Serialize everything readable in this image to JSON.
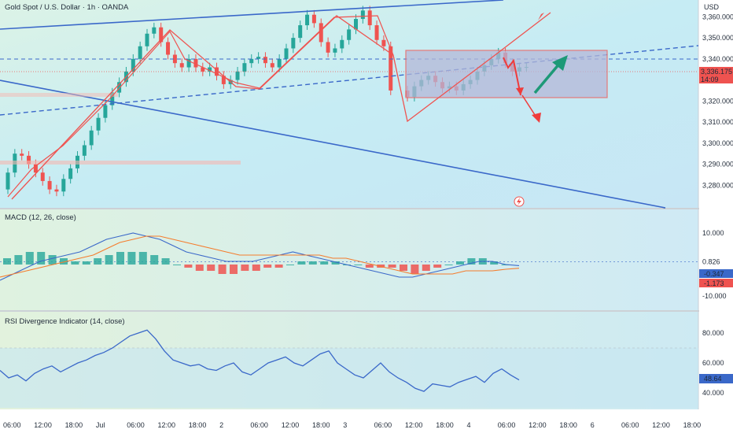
{
  "header": {
    "title": "Gold Spot / U.S. Dollar · 1h · OANDA",
    "currency": "USD"
  },
  "colors": {
    "up": "#26a69a",
    "down": "#ef5350",
    "accent_blue": "#3a68c9",
    "rect_fill": "#b5b8d8",
    "arrow_up": "#1d9977",
    "arrow_down": "#ef3b3b",
    "macd_line": "#3a68c9",
    "signal_line": "#f57c2c",
    "rsi_line": "#3a68c9"
  },
  "price_axis": {
    "ticks": [
      "3,360.000",
      "3,350.000",
      "3,340.000",
      "3,330.000",
      "3,320.000",
      "3,310.000",
      "3,300.000",
      "3,290.000",
      "3,280.000"
    ]
  },
  "price_label": {
    "value": "3,336.175",
    "countdown": "14:09"
  },
  "time_axis": {
    "ticks": [
      "06:00",
      "12:00",
      "18:00",
      "Jul",
      "06:00",
      "12:00",
      "18:00",
      "2",
      "06:00",
      "12:00",
      "18:00",
      "3",
      "06:00",
      "12:00",
      "18:00",
      "4",
      "06:00",
      "12:00",
      "18:00",
      "6",
      "06:00",
      "12:00",
      "18:00"
    ]
  },
  "macd": {
    "title": "MACD (12, 26, close)",
    "axis_ticks": [
      "10.000",
      "0.826",
      "-10.000"
    ],
    "badges": [
      {
        "value": "-0.347",
        "color": "#3a68c9"
      },
      {
        "value": "-1.173",
        "color": "#ef5350"
      }
    ]
  },
  "rsi": {
    "title": "RSI Divergence Indicator (14, close)",
    "axis_ticks": [
      "80.000",
      "60.000",
      "40.000"
    ],
    "badge": "48.64"
  },
  "chart_data": {
    "type": "candlestick",
    "title": "Gold Spot / U.S. Dollar · 1h · OANDA",
    "ylim": [
      3270,
      3365
    ],
    "open": [
      3278,
      3286,
      3295,
      3294,
      3290,
      3286,
      3282,
      3278,
      3277,
      3283,
      3288,
      3294,
      3299,
      3306,
      3312,
      3318,
      3324,
      3329,
      3334,
      3340,
      3346,
      3352,
      3355,
      3348,
      3342,
      3338,
      3336,
      3340,
      3336,
      3334,
      3336,
      3332,
      3328,
      3330,
      3334,
      3338,
      3340,
      3341,
      3338,
      3336,
      3340,
      3345,
      3350,
      3356,
      3361,
      3357,
      3348,
      3343,
      3345,
      3349,
      3354,
      3359,
      3363,
      3356,
      3349,
      3346,
      3325,
      3322,
      3327,
      3330,
      3332,
      3329,
      3326,
      3327,
      3325,
      3328,
      3330,
      3334,
      3337,
      3340,
      3343,
      3338,
      3334,
      3336
    ],
    "close": [
      3286,
      3295,
      3294,
      3290,
      3286,
      3282,
      3278,
      3277,
      3283,
      3288,
      3294,
      3299,
      3306,
      3312,
      3318,
      3324,
      3329,
      3334,
      3340,
      3346,
      3352,
      3355,
      3348,
      3342,
      3338,
      3336,
      3340,
      3336,
      3334,
      3336,
      3332,
      3328,
      3330,
      3334,
      3338,
      3340,
      3341,
      3338,
      3336,
      3340,
      3345,
      3350,
      3356,
      3361,
      3357,
      3348,
      3343,
      3345,
      3349,
      3354,
      3359,
      3363,
      3356,
      3349,
      3346,
      3325,
      3322,
      3327,
      3330,
      3332,
      3329,
      3326,
      3327,
      3325,
      3328,
      3330,
      3334,
      3337,
      3340,
      3343,
      3338,
      3334,
      3336,
      3336.175
    ],
    "current_price": 3336.175,
    "macd_values": {
      "histogram": [
        2,
        3,
        4,
        4,
        3,
        2,
        1,
        1,
        2,
        3,
        4,
        4,
        4,
        3,
        2,
        0,
        -1,
        -2,
        -2,
        -3,
        -3,
        -2,
        -2,
        -1,
        -1,
        0,
        1,
        1,
        1,
        1,
        0,
        0,
        -1,
        -1,
        -1,
        -2,
        -3,
        -2,
        -1,
        0,
        1,
        2,
        2,
        1,
        0
      ],
      "macd": [
        -5,
        -3,
        -1,
        1,
        2,
        3,
        4,
        6,
        8,
        9,
        10,
        9,
        8,
        6,
        4,
        3,
        2,
        1,
        1,
        1,
        2,
        3,
        4,
        3,
        2,
        1,
        0,
        -1,
        -2,
        -3,
        -4,
        -4,
        -3,
        -2,
        -1,
        0,
        1,
        1,
        0,
        -0.347
      ],
      "signal": [
        -4,
        -3,
        -2,
        -1,
        0,
        1,
        2,
        3,
        5,
        7,
        8,
        9,
        9,
        8,
        7,
        6,
        5,
        4,
        3,
        3,
        3,
        3,
        3,
        3,
        3,
        2,
        2,
        1,
        0,
        -1,
        -2,
        -3,
        -3,
        -3,
        -3,
        -2,
        -2,
        -2,
        -1.5,
        -1.173
      ]
    },
    "rsi_values": [
      55,
      50,
      52,
      48,
      53,
      56,
      58,
      54,
      57,
      60,
      62,
      65,
      67,
      70,
      74,
      78,
      80,
      82,
      76,
      68,
      62,
      60,
      58,
      59,
      56,
      55,
      58,
      60,
      54,
      52,
      56,
      60,
      62,
      64,
      60,
      58,
      62,
      66,
      68,
      60,
      56,
      52,
      50,
      55,
      60,
      54,
      50,
      47,
      43,
      41,
      46,
      45,
      44,
      47,
      49,
      51,
      47,
      53,
      56,
      52,
      48.64
    ]
  }
}
